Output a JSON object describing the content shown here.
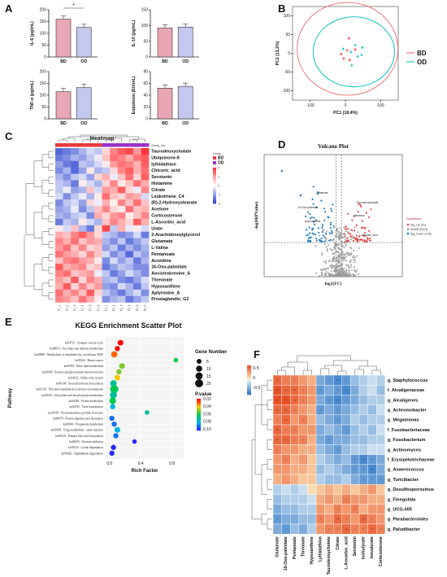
{
  "panels": {
    "a": "A",
    "b": "B",
    "c": "C",
    "d": "D",
    "e": "E",
    "f": "F"
  },
  "colors": {
    "bd": "#f07a7a",
    "od": "#26c6c6",
    "bar_bd": "#e9a6b5",
    "bar_od": "#c4c7ee",
    "hot": "#e8343a",
    "cold": "#2a43d1",
    "scatter_red": "#f21e26",
    "scatter_green": "#26e026",
    "scatter_blue": "#2a3fd6"
  },
  "chart_data": [
    {
      "id": "A1",
      "type": "bar",
      "categories": [
        "BD",
        "OD"
      ],
      "values": [
        160,
        125
      ],
      "ylabel": "IL-6 (pg/mL)",
      "yticks": [
        "0",
        "50",
        "100",
        "150",
        "200"
      ],
      "ylim": [
        0,
        200
      ],
      "annotation": "*"
    },
    {
      "id": "A2",
      "type": "bar",
      "categories": [
        "BD",
        "OD"
      ],
      "values": [
        92,
        95
      ],
      "ylabel": "IL-10 (pg/mL)",
      "yticks": [
        "0",
        "50",
        "100",
        "150"
      ],
      "ylim": [
        0,
        150
      ]
    },
    {
      "id": "A3",
      "type": "bar",
      "categories": [
        "BD",
        "OD"
      ],
      "values": [
        115,
        132
      ],
      "ylabel": "TNF-α (pg/mL)",
      "yticks": [
        "0",
        "50",
        "100",
        "150",
        "200"
      ],
      "ylim": [
        0,
        200
      ]
    },
    {
      "id": "A4",
      "type": "bar",
      "categories": [
        "BD",
        "OD"
      ],
      "values": [
        52,
        55
      ],
      "ylabel": "Endotoxin (EU/mL)",
      "yticks": [
        "0",
        "20",
        "40",
        "60",
        "80"
      ],
      "ylim": [
        0,
        80
      ]
    },
    {
      "id": "B",
      "type": "scatter",
      "xlabel": "PC1 (18.4%)",
      "ylabel": "PC2 (13.2%)",
      "xticks": [
        "-100",
        "0",
        "100"
      ],
      "yticks": [
        "100",
        "50",
        "0",
        "-50",
        "-100"
      ],
      "xlim": [
        -150,
        150
      ],
      "ylim": [
        -125,
        125
      ],
      "legend": [
        "BD",
        "OD"
      ],
      "series": [
        {
          "name": "BD",
          "points": [
            [
              -12,
              -2
            ],
            [
              5,
              8
            ],
            [
              28,
              10
            ],
            [
              -5,
              -14
            ],
            [
              12,
              -18
            ],
            [
              10,
              40
            ]
          ]
        },
        {
          "name": "OD",
          "points": [
            [
              28,
              22
            ],
            [
              35,
              -8
            ],
            [
              48,
              16
            ],
            [
              16,
              4
            ],
            [
              -6,
              12
            ],
            [
              18,
              -32
            ],
            [
              46,
              -4
            ]
          ]
        }
      ]
    },
    {
      "id": "C",
      "type": "heatmap",
      "title": "Heatmap",
      "col_group_label": "Group_Col",
      "legend_title": "Group",
      "legend_groups": [
        "BD",
        "OD"
      ],
      "colorbar_ticks": [
        "2",
        "1",
        "0",
        "-1",
        "-2"
      ],
      "columns": [
        "T1_1",
        "T1_2",
        "T1_3",
        "T1_4",
        "T1_5",
        "T1_6",
        "T2_1",
        "T2_2",
        "T2_3",
        "T2_4",
        "T2_5",
        "T2_6"
      ],
      "rows": [
        "Taurodeoxycholate",
        "Ubiquinone-9",
        "Iythidathion",
        "Chicoric_acid",
        "Serotonin",
        "Histamine",
        "Citrate",
        "Leukotriene_C4",
        "(R)-2-Hydroxystearate",
        "Acetone",
        "Corticosterone",
        "L-Ascorbic_acid",
        "Urate",
        "2-Arachidonoylglycerol",
        "Glutamate",
        "L-Valine",
        "Pentanoate",
        "Aconitine",
        "16-Oxo-palmitate",
        "Ancistrobrevine_A",
        "Threonate",
        "Hypoxanthine",
        "Aplyronine_A",
        "Prostaglandin_G2"
      ],
      "values": [
        [
          -1.6,
          -1.4,
          -1.2,
          -0.8,
          -0.4,
          -0.6,
          0.4,
          1.2,
          1.6,
          1.8,
          1.0,
          2.0
        ],
        [
          -1.4,
          -1.2,
          -0.8,
          -1.0,
          -0.6,
          -0.2,
          0.6,
          1.4,
          1.2,
          0.8,
          1.4,
          1.6
        ],
        [
          -1.0,
          -1.4,
          -1.6,
          -0.6,
          -0.8,
          -0.4,
          0.2,
          1.0,
          1.4,
          1.2,
          0.8,
          1.6
        ],
        [
          -1.2,
          -0.8,
          -1.6,
          -1.0,
          0.2,
          -0.8,
          -0.6,
          0.4,
          1.2,
          1.6,
          0.8,
          1.4
        ],
        [
          -0.8,
          -1.2,
          -0.6,
          -0.4,
          -1.0,
          0.4,
          0.8,
          -0.2,
          0.6,
          1.4,
          0.4,
          1.6
        ],
        [
          -0.6,
          -0.8,
          -1.4,
          0.2,
          -0.4,
          -0.8,
          0.4,
          1.2,
          0.2,
          0.6,
          1.4,
          0.8
        ],
        [
          -0.6,
          -0.2,
          -1.0,
          -0.8,
          0.6,
          -0.4,
          1.0,
          0.8,
          1.6,
          0.4,
          -0.2,
          1.2
        ],
        [
          -0.4,
          -1.2,
          -0.6,
          -0.2,
          -0.8,
          0.2,
          1.4,
          0.6,
          0.4,
          1.0,
          0.8,
          -0.4
        ],
        [
          -1.2,
          -0.6,
          -0.4,
          -1.0,
          0.4,
          -0.2,
          0.8,
          0.2,
          1.2,
          0.6,
          1.4,
          0.6
        ],
        [
          -1.0,
          -0.8,
          -0.2,
          -1.2,
          -0.6,
          0.6,
          1.2,
          0.4,
          0.2,
          1.4,
          0.6,
          0.8
        ],
        [
          -0.8,
          -1.0,
          -0.6,
          -0.4,
          -1.2,
          0.8,
          0.4,
          1.0,
          1.2,
          0.2,
          0.6,
          1.2
        ],
        [
          -1.4,
          -0.6,
          -0.8,
          0.2,
          -0.4,
          -0.8,
          0.6,
          1.2,
          0.8,
          0.4,
          1.6,
          0.8
        ],
        [
          0.2,
          -0.4,
          0.6,
          -0.8,
          -1.4,
          0.4,
          1.8,
          -0.6,
          0.8,
          -0.2,
          0.2,
          -0.4
        ],
        [
          0.8,
          0.6,
          1.2,
          1.6,
          1.0,
          0.4,
          -0.6,
          -0.8,
          -1.2,
          -1.0,
          -0.4,
          -1.4
        ],
        [
          1.2,
          0.8,
          1.4,
          0.6,
          1.0,
          0.8,
          -0.8,
          -1.2,
          -0.6,
          -1.4,
          -1.0,
          -0.6
        ],
        [
          1.0,
          1.4,
          0.6,
          1.2,
          0.4,
          0.6,
          -1.0,
          -0.6,
          -1.4,
          -0.8,
          -1.2,
          -0.8
        ],
        [
          1.4,
          1.0,
          0.8,
          0.4,
          1.2,
          0.6,
          -0.4,
          -1.2,
          -0.8,
          -1.6,
          -0.6,
          -1.0
        ],
        [
          0.6,
          1.2,
          1.4,
          1.0,
          0.8,
          0.2,
          -1.2,
          -0.4,
          -1.0,
          -0.6,
          -1.4,
          -0.8
        ],
        [
          1.6,
          0.8,
          1.0,
          1.2,
          0.4,
          0.6,
          -1.4,
          -1.0,
          -0.6,
          -0.8,
          -1.2,
          -1.2
        ],
        [
          1.2,
          1.4,
          0.6,
          0.8,
          1.0,
          -0.2,
          -0.6,
          -1.4,
          -1.0,
          -0.4,
          -0.8,
          -1.2
        ],
        [
          1.0,
          0.6,
          1.6,
          0.4,
          1.2,
          0.8,
          -0.8,
          -0.6,
          -1.2,
          -1.4,
          -1.0,
          -0.4
        ],
        [
          0.8,
          1.6,
          0.4,
          1.2,
          0.6,
          1.0,
          -1.0,
          -1.2,
          -0.4,
          -0.8,
          -1.4,
          -0.6
        ],
        [
          1.4,
          0.8,
          1.2,
          0.6,
          1.6,
          0.4,
          -0.6,
          -1.0,
          -1.4,
          -0.8,
          -0.4,
          -1.2
        ],
        [
          1.2,
          1.0,
          0.6,
          1.4,
          0.8,
          0.2,
          -1.2,
          -0.8,
          -0.6,
          -1.4,
          -1.0,
          -0.6
        ]
      ]
    },
    {
      "id": "D",
      "type": "scatter",
      "title": "Volcano Plot",
      "xlabel": "log2(FC)",
      "ylabel": "-log10(PValue)",
      "legend_title": "Significant",
      "legend": [
        "Sig_Up (91)",
        "NoDiff (3024)",
        "Sig_Down (105)"
      ],
      "annotations": [
        "Glutamate",
        "16-Oxo-palmitate",
        "Hypoxanthine",
        "Taurodeoxycholate",
        "Histamine",
        "L-Ascorbic_acid"
      ]
    },
    {
      "id": "E",
      "type": "scatter",
      "title": "KEGG Enrichment Scatter Plot",
      "xlabel": "Rich Factor",
      "ylabel": "Pathway",
      "xticks": [
        "0.0",
        "0.4",
        "0.8"
      ],
      "xlim": [
        -0.05,
        0.95
      ],
      "size_legend_title": "Gene Number",
      "size_legend": [
        "5",
        "10",
        "15",
        "20"
      ],
      "color_legend_title": "P.value",
      "color_legend": [
        "0.02",
        "0.04",
        "0.06",
        "0.08",
        "0.10"
      ],
      "pathways": [
        "ko04721 : Synaptic vesicle cycle",
        "ko00053 : Ascorbate and aldarate metabolism",
        "ko00980 : Metabolism of xenobiotics by cytochrome P450",
        "ko05224 : Breast cancer",
        "ko00565 : Ether lipid metabolism",
        "ko00040 : Pentose and glucuronate interconversions",
        "ko04122 : Sulfur relay system",
        "ko00100 : Steroid hormone biosynthesis",
        "ko01120 : Microbial metabolism in diverse environments",
        "ko00310 : Glyoxylate and dicarboxylate metabolism",
        "ko00230 : Purine metabolism",
        "ko04745 : Taste transduction",
        "ko01058 : Neurotransmitter pyridine structures",
        "ko00970 : Protein digestion and absorption",
        "ko00040 : Propanoate metabolism",
        "ko00983 : Drug metabolism - other enzymes",
        "ko00120 : Primary bile acid biosynthesis",
        "ko00650 : Nicotine addiction",
        "ko00310 : Lysine degradation",
        "ko00626 : Naphthalene degradation"
      ],
      "rich_factor": [
        0.14,
        0.1,
        0.06,
        0.85,
        0.16,
        0.12,
        0.1,
        0.05,
        0.06,
        0.05,
        0.04,
        0.04,
        0.48,
        0.03,
        0.06,
        0.1,
        0.08,
        0.32,
        0.05,
        0.03
      ],
      "gene_number": [
        8,
        6,
        10,
        4,
        8,
        6,
        8,
        12,
        22,
        14,
        12,
        6,
        4,
        6,
        6,
        8,
        6,
        4,
        6,
        6
      ],
      "pvalue": [
        0.02,
        0.02,
        0.03,
        0.06,
        0.05,
        0.05,
        0.04,
        0.07,
        0.06,
        0.07,
        0.06,
        0.08,
        0.07,
        0.09,
        0.09,
        0.08,
        0.09,
        0.1,
        0.1,
        0.1
      ]
    },
    {
      "id": "F",
      "type": "heatmap",
      "colorbar_ticks": [
        "0.5",
        "0",
        "-0.5"
      ],
      "rows": [
        "g_Staphylococcus",
        "f_Alcaligenaceae",
        "g_Alcaligenes",
        "g_Achromobacter",
        "g_Megamonas",
        "f_Fusobacteriaceae",
        "g_Fusobacterium",
        "g_Actinomyces",
        "f_Erysipelotrichaceae",
        "g_Anaerococcus",
        "g_Turicibacter",
        "g_Desulfosporosinus",
        "g_Finegoldia",
        "g_UCG-005",
        "g_Parabacteroides",
        "g_Paludibacter"
      ],
      "columns": [
        "Glutamate",
        "16-Oxo-palmitate",
        "Pentanoate",
        "Threonate",
        "Hypoxanthine",
        "Lythidathion",
        "Taurodeoxycholate",
        "Citrate",
        "L-Ascorbic_acid",
        "Serotonin",
        "Isobutyrate",
        "Isovalerate",
        "Corticosterone"
      ],
      "values": [
        [
          0.6,
          0.5,
          0.5,
          0.4,
          0.3,
          -0.4,
          -0.5,
          -0.6,
          -0.5,
          -0.3,
          -0.2,
          -0.1,
          -0.2
        ],
        [
          0.7,
          0.6,
          0.6,
          0.5,
          0.4,
          -0.5,
          -0.4,
          -0.5,
          -0.6,
          -0.4,
          -0.2,
          -0.1,
          -0.3
        ],
        [
          0.7,
          0.7,
          0.6,
          0.5,
          0.4,
          -0.4,
          -0.5,
          -0.6,
          -0.5,
          -0.4,
          -0.3,
          -0.2,
          -0.2
        ],
        [
          0.6,
          0.6,
          0.5,
          0.4,
          0.3,
          -0.5,
          -0.4,
          -0.5,
          -0.4,
          -0.3,
          -0.2,
          -0.3,
          -0.1
        ],
        [
          0.5,
          0.6,
          0.4,
          0.5,
          0.3,
          -0.3,
          -0.4,
          -0.5,
          -0.4,
          -0.2,
          -0.3,
          -0.2,
          -0.2
        ],
        [
          0.6,
          0.5,
          0.5,
          0.4,
          0.4,
          -0.4,
          -0.3,
          -0.4,
          -0.5,
          -0.3,
          -0.2,
          -0.3,
          -0.1
        ],
        [
          0.6,
          0.6,
          0.5,
          0.5,
          0.3,
          -0.4,
          -0.5,
          -0.4,
          -0.4,
          -0.3,
          -0.3,
          -0.2,
          -0.2
        ],
        [
          0.5,
          0.4,
          0.4,
          0.3,
          0.3,
          -0.3,
          -0.4,
          -0.5,
          -0.3,
          -0.2,
          -0.2,
          -0.1,
          -0.1
        ],
        [
          0.4,
          0.5,
          0.3,
          0.4,
          0.2,
          -0.2,
          -0.3,
          -0.4,
          -0.3,
          -0.5,
          -0.6,
          -0.5,
          -0.4
        ],
        [
          0.4,
          0.4,
          0.3,
          0.3,
          0.2,
          -0.3,
          -0.2,
          -0.3,
          -0.4,
          -0.5,
          -0.5,
          -0.6,
          -0.4
        ],
        [
          0.3,
          0.4,
          0.3,
          0.2,
          0.2,
          -0.2,
          -0.3,
          -0.3,
          -0.2,
          -0.4,
          -0.5,
          -0.5,
          -0.5
        ],
        [
          -0.2,
          -0.1,
          -0.2,
          -0.1,
          0.1,
          0.2,
          0.3,
          0.2,
          0.3,
          0.2,
          0.3,
          0.4,
          0.2
        ],
        [
          -0.3,
          -0.2,
          -0.2,
          -0.2,
          -0.1,
          0.3,
          0.4,
          0.3,
          0.5,
          0.4,
          0.4,
          0.3,
          0.3
        ],
        [
          -0.4,
          -0.3,
          -0.3,
          -0.2,
          -0.2,
          0.4,
          0.3,
          0.5,
          0.4,
          0.5,
          0.3,
          0.4,
          0.4
        ],
        [
          -0.5,
          -0.4,
          -0.4,
          -0.3,
          -0.3,
          0.5,
          0.4,
          0.6,
          0.5,
          0.4,
          0.6,
          0.5,
          0.4
        ],
        [
          -0.4,
          -0.5,
          -0.3,
          -0.4,
          -0.2,
          0.4,
          0.5,
          0.5,
          0.6,
          0.5,
          0.5,
          0.6,
          0.5
        ]
      ]
    }
  ]
}
